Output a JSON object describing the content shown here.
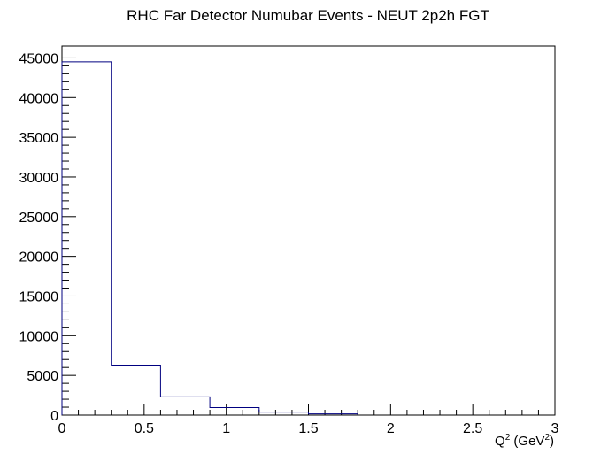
{
  "chart_data": {
    "type": "histogram",
    "title": "RHC Far Detector Numubar Events - NEUT 2p2h FGT",
    "xlabel": {
      "symbol": "Q",
      "sup": "2",
      "unit_open": "(GeV",
      "unit_sup": "2",
      "unit_close": ")"
    },
    "ylabel": "",
    "xlim": [
      0,
      3
    ],
    "ylim": [
      0,
      46500
    ],
    "x_ticks": [
      "0",
      "0.5",
      "1",
      "1.5",
      "2",
      "2.5",
      "3"
    ],
    "x_tick_values": [
      0,
      0.5,
      1,
      1.5,
      2,
      2.5,
      3
    ],
    "y_ticks": [
      "0",
      "5000",
      "10000",
      "15000",
      "20000",
      "25000",
      "30000",
      "35000",
      "40000",
      "45000"
    ],
    "y_tick_values": [
      0,
      5000,
      10000,
      15000,
      20000,
      25000,
      30000,
      35000,
      40000,
      45000
    ],
    "bin_edges": [
      0,
      0.3,
      0.6,
      0.9,
      1.2,
      1.5,
      1.8
    ],
    "counts": [
      44500,
      6300,
      2300,
      950,
      380,
      150
    ],
    "line_color": "#000080",
    "grid": false,
    "legend": "none"
  }
}
